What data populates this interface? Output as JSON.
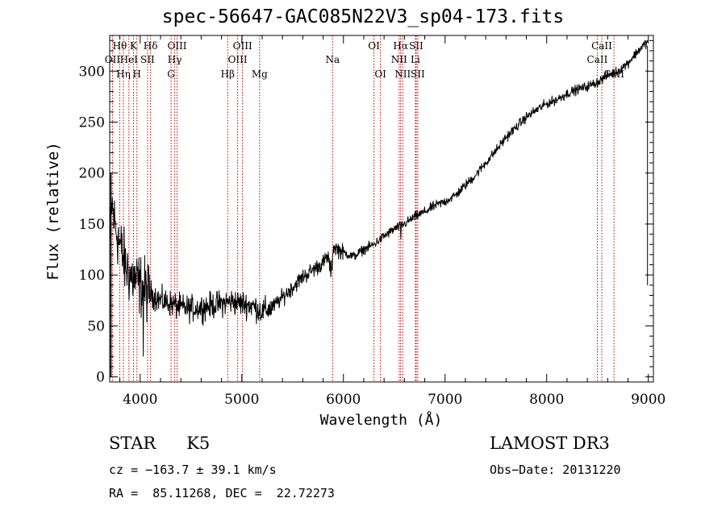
{
  "chart_data": {
    "type": "line",
    "title": "spec-56647-GAC085N22V3_sp04-173.fits",
    "xlabel": "Wavelength (Å)",
    "ylabel": "Flux (relative)",
    "xlim": [
      3700,
      9050
    ],
    "ylim": [
      -5,
      335
    ],
    "xticks": [
      4000,
      5000,
      6000,
      7000,
      8000,
      9000
    ],
    "yticks": [
      0,
      50,
      100,
      150,
      200,
      250,
      300
    ],
    "spectrum_anchors": {
      "wavelength": [
        3700,
        3720,
        3750,
        3800,
        3850,
        3900,
        3950,
        4000,
        4100,
        4200,
        4300,
        4400,
        4500,
        4600,
        4700,
        4800,
        4900,
        5000,
        5100,
        5200,
        5300,
        5400,
        5500,
        5600,
        5700,
        5800,
        5850,
        5880,
        5900,
        5950,
        6000,
        6100,
        6200,
        6300,
        6400,
        6500,
        6600,
        6700,
        6800,
        6900,
        7000,
        7100,
        7200,
        7300,
        7400,
        7500,
        7600,
        7700,
        7800,
        7900,
        8000,
        8100,
        8200,
        8300,
        8400,
        8500,
        8600,
        8700,
        8800,
        8900,
        8960,
        9000
      ],
      "flux": [
        120,
        170,
        150,
        130,
        110,
        100,
        95,
        90,
        82,
        75,
        72,
        68,
        67,
        68,
        70,
        72,
        74,
        72,
        70,
        64,
        68,
        78,
        88,
        98,
        105,
        112,
        118,
        100,
        128,
        125,
        122,
        118,
        125,
        130,
        138,
        145,
        150,
        157,
        162,
        168,
        172,
        178,
        188,
        198,
        210,
        222,
        235,
        245,
        255,
        262,
        268,
        272,
        278,
        282,
        285,
        289,
        296,
        300,
        308,
        320,
        326,
        330
      ]
    },
    "spectral_lines": [
      {
        "label": "Hθ",
        "wavelength": 3798,
        "row": 0
      },
      {
        "label": "OII",
        "wavelength": 3727,
        "row": 1
      },
      {
        "label": "Hη",
        "wavelength": 3835,
        "row": 2
      },
      {
        "label": "K",
        "wavelength": 3934,
        "row": 0
      },
      {
        "label": "HeI",
        "wavelength": 3889,
        "row": 1
      },
      {
        "label": "H",
        "wavelength": 3968,
        "row": 2
      },
      {
        "label": "Hδ",
        "wavelength": 4102,
        "row": 0
      },
      {
        "label": "SII",
        "wavelength": 4072,
        "row": 1
      },
      {
        "label": "OIII",
        "wavelength": 4363,
        "row": 0
      },
      {
        "label": "Hγ",
        "wavelength": 4340,
        "row": 1
      },
      {
        "label": "G",
        "wavelength": 4304,
        "row": 2
      },
      {
        "label": "Hβ",
        "wavelength": 4861,
        "row": 2
      },
      {
        "label": "OIII",
        "wavelength": 5007,
        "row": 0
      },
      {
        "label": "OIII",
        "wavelength": 4959,
        "row": 1
      },
      {
        "label": "Mg",
        "wavelength": 5175,
        "row": 2
      },
      {
        "label": "Na",
        "wavelength": 5893,
        "row": 1
      },
      {
        "label": "OI",
        "wavelength": 6300,
        "row": 0
      },
      {
        "label": "OI",
        "wavelength": 6364,
        "row": 2
      },
      {
        "label": "Hα",
        "wavelength": 6563,
        "row": 0
      },
      {
        "label": "NII",
        "wavelength": 6548,
        "row": 1
      },
      {
        "label": "NII",
        "wavelength": 6583,
        "row": 2
      },
      {
        "label": "SII",
        "wavelength": 6716,
        "row": 0
      },
      {
        "label": "Li",
        "wavelength": 6708,
        "row": 1
      },
      {
        "label": "SII",
        "wavelength": 6731,
        "row": 2
      },
      {
        "label": "CaII",
        "wavelength": 8542,
        "row": 0
      },
      {
        "label": "CaII",
        "wavelength": 8498,
        "row": 1
      },
      {
        "label": "CaII",
        "wavelength": 8662,
        "row": 2
      }
    ]
  },
  "info": {
    "class": "STAR",
    "subclass": "K5",
    "cz": "cz = −163.7 ± 39.1 km/s",
    "radec": "RA =  85.11268, DEC =  22.72273",
    "survey": "LAMOST DR3",
    "obs_date": "Obs−Date: 20131220"
  }
}
